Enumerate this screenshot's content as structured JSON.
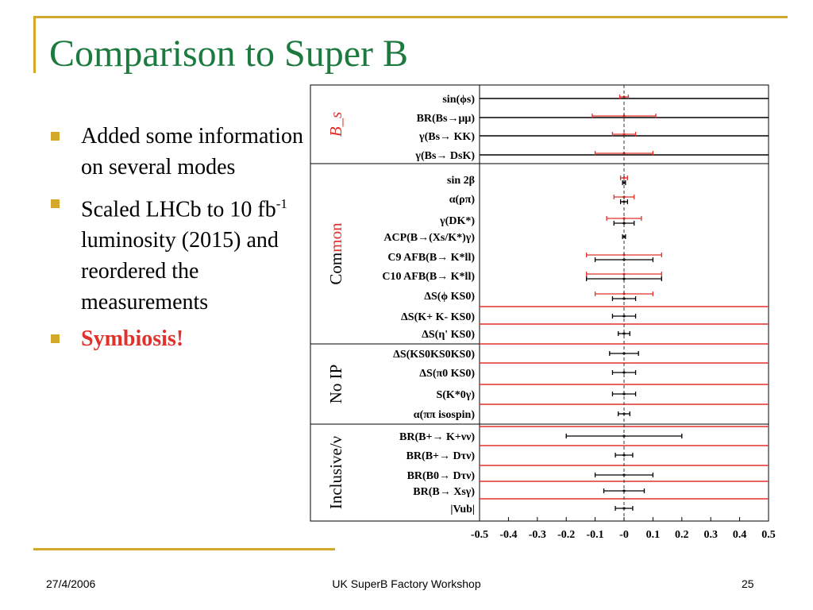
{
  "slide": {
    "title": "Comparison to Super B",
    "bullets": [
      {
        "text": "Added some information on several modes"
      },
      {
        "text_before": "Scaled LHCb to 10 fb",
        "sup": "-1",
        "text_after": " luminosity (2015) and reordered the measurements"
      },
      {
        "text": "Symbiosis!"
      }
    ],
    "footer": {
      "date": "27/4/2006",
      "center": "UK SuperB Factory Workshop",
      "page": "25"
    }
  },
  "colors": {
    "title": "#1d7a3e",
    "accent": "#d4a82b",
    "red": "#e0312b",
    "black": "#000000"
  },
  "chart_data": {
    "type": "scatter",
    "orientation": "horizontal-error-bars",
    "x_ticks": [
      "-0.5",
      "-0.4",
      "-0.3",
      "-0.2",
      "-0.1",
      "-0",
      "0.1",
      "0.2",
      "0.3",
      "0.4",
      "0.5"
    ],
    "xlim": [
      -0.5,
      0.5
    ],
    "center_line": 0,
    "groups": [
      {
        "label": "B_s",
        "italic": true,
        "color": "#e0312b",
        "rows": [
          {
            "label": "sin(ϕs)",
            "red": 0.015,
            "black_line": true
          },
          {
            "label": "BR(Bs→μμ)",
            "red": 0.11,
            "black_line": true
          },
          {
            "label": "γ(Bs→ KK)",
            "red": 0.04,
            "black_line": true
          },
          {
            "label": "γ(Bs→ DsK)",
            "red": 0.1,
            "black_line": true
          }
        ]
      },
      {
        "label": "Common",
        "color_split": true,
        "rows": [
          {
            "label": "sin 2β",
            "red": 0.012,
            "black": 0.005
          },
          {
            "label": "α(ρπ)",
            "red": 0.035,
            "black": 0.012
          },
          {
            "label": "γ(DK*)",
            "red": 0.06,
            "black": 0.035
          },
          {
            "label": "ACP(B→(Xs/K*)γ)",
            "black": 0.005
          },
          {
            "label": "C9 AFB(B→ K*ll)",
            "red": 0.13,
            "black": 0.1
          },
          {
            "label": "C10 AFB(B→ K*ll)",
            "red": 0.13,
            "black": 0.13
          },
          {
            "label": "ΔS(ϕ KS0)",
            "red": 0.1,
            "black": 0.04
          },
          {
            "label": "ΔS(K+ K- KS0)",
            "red_line": true,
            "black": 0.04
          },
          {
            "label": "ΔS(η' KS0)",
            "red_line": true,
            "black": 0.02
          }
        ]
      },
      {
        "label": "No IP",
        "color": "#000000",
        "rows": [
          {
            "label": "ΔS(KS0KS0KS0)",
            "red_line": true,
            "black": 0.05
          },
          {
            "label": "ΔS(π0 KS0)",
            "red_line": true,
            "black": 0.04
          },
          {
            "label": "S(K*0γ)",
            "red_line": true,
            "black": 0.04
          },
          {
            "label": "α(ππ isospin)",
            "red_line": true,
            "black": 0.02
          }
        ]
      },
      {
        "label": "Inclusive/ν",
        "color": "#000000",
        "rows": [
          {
            "label": "BR(B+→ K+νν)",
            "red_line": true,
            "black": 0.2
          },
          {
            "label": "BR(B+→ Dτν)",
            "red_line": true,
            "black": 0.03
          },
          {
            "label": "BR(B0→ Dτν)",
            "red_line": true,
            "black": 0.1
          },
          {
            "label": "BR(B→ Xsγ)",
            "red_line": true,
            "black": 0.07
          },
          {
            "label": "|Vub|",
            "red_line": true,
            "black": 0.03
          }
        ]
      }
    ]
  }
}
